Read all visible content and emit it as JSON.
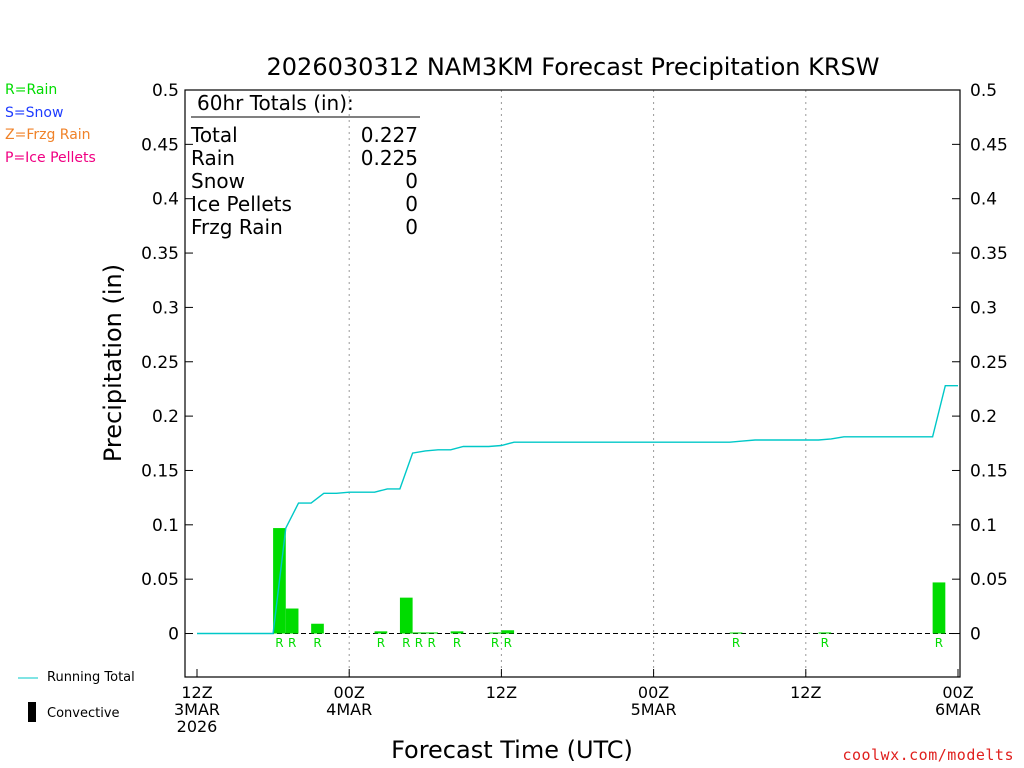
{
  "legend": [
    {
      "label": "R=Rain",
      "color": "#00dc00"
    },
    {
      "label": "S=Snow",
      "color": "#1e3cff"
    },
    {
      "label": "Z=Frzg Rain",
      "color": "#f08228"
    },
    {
      "label": "P=Ice Pellets",
      "color": "#f00082"
    }
  ],
  "key": {
    "running_total_label": "Running Total",
    "convective_label": "Convective",
    "running_total_color": "#00c8c8"
  },
  "credit": "coolwx.com/modelts",
  "totals_box": {
    "header": "60hr Totals (in):",
    "rows": [
      {
        "label": "Total",
        "value": "0.227"
      },
      {
        "label": "Rain",
        "value": "0.225"
      },
      {
        "label": "Snow",
        "value": "0"
      },
      {
        "label": "Ice Pellets",
        "value": "0"
      },
      {
        "label": "Frzg Rain",
        "value": "0"
      }
    ]
  },
  "chart_data": {
    "type": "bar",
    "title": "2026030312 NAM3KM Forecast Precipitation KRSW",
    "xlabel": "Forecast Time (UTC)",
    "ylabel": "Precipitation (in)",
    "xlim": [
      0,
      60
    ],
    "ylim": [
      -0.04,
      0.5
    ],
    "y_ticks": [
      0,
      0.05,
      0.1,
      0.15,
      0.2,
      0.25,
      0.3,
      0.35,
      0.4,
      0.45,
      0.5
    ],
    "y_tick_labels": [
      "0",
      "0.05",
      "0.1",
      "0.15",
      "0.2",
      "0.25",
      "0.3",
      "0.35",
      "0.4",
      "0.45",
      "0.5"
    ],
    "x_ticks": [
      {
        "hour": 0,
        "lines": [
          "12Z",
          "3MAR",
          "2026"
        ]
      },
      {
        "hour": 12,
        "lines": [
          "00Z",
          "4MAR"
        ]
      },
      {
        "hour": 24,
        "lines": [
          "12Z"
        ]
      },
      {
        "hour": 36,
        "lines": [
          "00Z",
          "5MAR"
        ]
      },
      {
        "hour": 48,
        "lines": [
          "12Z"
        ]
      },
      {
        "hour": 60,
        "lines": [
          "00Z",
          "6MAR"
        ]
      }
    ],
    "grid": "vertical dotted lines at each day/half-day",
    "bar_color": "#00dc00",
    "bars": [
      {
        "hour": 7,
        "value": 0.097,
        "ptype": "R"
      },
      {
        "hour": 8,
        "value": 0.023,
        "ptype": "R"
      },
      {
        "hour": 10,
        "value": 0.009,
        "ptype": "R"
      },
      {
        "hour": 15,
        "value": 0.002,
        "ptype": "R"
      },
      {
        "hour": 17,
        "value": 0.033,
        "ptype": "R"
      },
      {
        "hour": 18,
        "value": 0.001,
        "ptype": "R"
      },
      {
        "hour": 19,
        "value": 0.001,
        "ptype": "R"
      },
      {
        "hour": 21,
        "value": 0.002,
        "ptype": "R"
      },
      {
        "hour": 24,
        "value": 0.0005,
        "ptype": "R"
      },
      {
        "hour": 25,
        "value": 0.003,
        "ptype": "R"
      },
      {
        "hour": 43,
        "value": 0.0005,
        "ptype": "R"
      },
      {
        "hour": 50,
        "value": 0.001,
        "ptype": "R"
      },
      {
        "hour": 59,
        "value": 0.047,
        "ptype": "R"
      }
    ],
    "running_total": {
      "x": [
        1,
        2,
        3,
        4,
        5,
        6,
        7,
        8,
        9,
        10,
        11,
        12,
        13,
        14,
        15,
        16,
        17,
        18,
        19,
        20,
        21,
        22,
        23,
        24,
        25,
        26,
        27,
        28,
        29,
        30,
        31,
        32,
        33,
        34,
        35,
        36,
        37,
        38,
        39,
        40,
        41,
        42,
        43,
        44,
        45,
        46,
        47,
        48,
        49,
        50,
        51,
        52,
        53,
        54,
        55,
        56,
        57,
        58,
        59,
        60
      ],
      "y": [
        0,
        0,
        0,
        0,
        0,
        0,
        0.097,
        0.12,
        0.12,
        0.129,
        0.129,
        0.13,
        0.13,
        0.13,
        0.133,
        0.133,
        0.166,
        0.168,
        0.169,
        0.169,
        0.172,
        0.172,
        0.172,
        0.173,
        0.176,
        0.176,
        0.176,
        0.176,
        0.176,
        0.176,
        0.176,
        0.176,
        0.176,
        0.176,
        0.176,
        0.176,
        0.176,
        0.176,
        0.176,
        0.176,
        0.176,
        0.176,
        0.177,
        0.178,
        0.178,
        0.178,
        0.178,
        0.178,
        0.178,
        0.179,
        0.181,
        0.181,
        0.181,
        0.181,
        0.181,
        0.181,
        0.181,
        0.181,
        0.228,
        0.228
      ]
    }
  }
}
